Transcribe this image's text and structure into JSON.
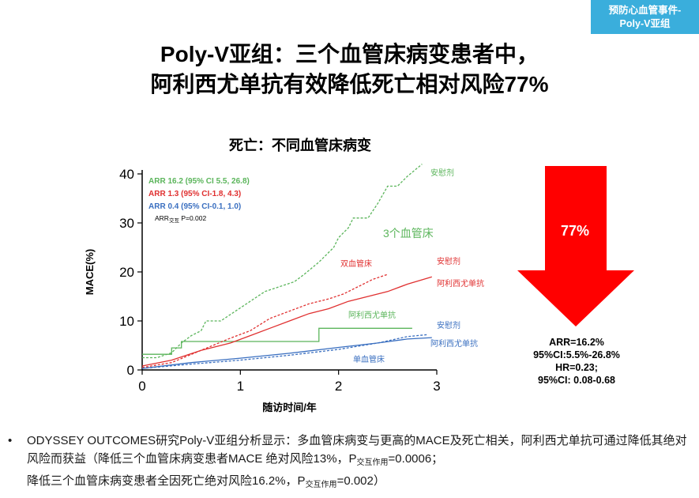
{
  "badge": {
    "line1": "预防心血管事件-",
    "line2": "Poly-V亚组"
  },
  "title": {
    "line1": "Poly-V亚组：三个血管床病变患者中，",
    "line2": "阿利西尤单抗有效降低死亡相对风险77%"
  },
  "chart_data": {
    "type": "line",
    "title": "死亡：不同血管床病变",
    "xlabel": "随访时间/年",
    "ylabel": "MACE(%)",
    "xlim": [
      0,
      3
    ],
    "ylim": [
      0,
      40
    ],
    "xticks": [
      0,
      1,
      2,
      3
    ],
    "yticks": [
      0,
      10,
      20,
      30,
      40
    ],
    "grid": false,
    "legend": [
      {
        "text": "ARR 16.2 (95% CI 5.5, 26.8)",
        "color": "#5bb55b"
      },
      {
        "text": "ARR 1.3 (95% CI-1.8, 4.3)",
        "color": "#e03030"
      },
      {
        "text": "ARR 0.4 (95% CI-0.1, 1.0)",
        "color": "#3a6fc0"
      }
    ],
    "legend_note": {
      "prefix": "ARR",
      "sub": "交互",
      "suffix": " P=0.002"
    },
    "series": [
      {
        "name": "安慰剂",
        "group": "3个血管床",
        "color": "#5bb55b",
        "dash": true,
        "points": [
          [
            0,
            2.5
          ],
          [
            0.15,
            2.5
          ],
          [
            0.3,
            3.5
          ],
          [
            0.4,
            5.5
          ],
          [
            0.5,
            7
          ],
          [
            0.6,
            8
          ],
          [
            0.65,
            10
          ],
          [
            0.8,
            10
          ],
          [
            0.95,
            12
          ],
          [
            1.1,
            14
          ],
          [
            1.25,
            16
          ],
          [
            1.4,
            17
          ],
          [
            1.55,
            18
          ],
          [
            1.65,
            19.5
          ],
          [
            1.8,
            22
          ],
          [
            1.95,
            25
          ],
          [
            2.0,
            27
          ],
          [
            2.1,
            29
          ],
          [
            2.15,
            31
          ],
          [
            2.3,
            31
          ],
          [
            2.4,
            34
          ],
          [
            2.5,
            37.5
          ],
          [
            2.6,
            37.5
          ],
          [
            2.7,
            39.5
          ],
          [
            2.85,
            42
          ]
        ]
      },
      {
        "name": "阿利西尤单抗",
        "group": "3个血管床",
        "color": "#5bb55b",
        "dash": false,
        "points": [
          [
            0,
            3.2
          ],
          [
            0.3,
            3.2
          ],
          [
            0.3,
            4.5
          ],
          [
            0.4,
            4.5
          ],
          [
            0.4,
            5.8
          ],
          [
            1.8,
            5.8
          ],
          [
            1.8,
            8.5
          ],
          [
            2.75,
            8.5
          ]
        ]
      },
      {
        "name": "安慰剂",
        "group": "双血管床",
        "color": "#e03030",
        "dash": true,
        "points": [
          [
            0,
            0.5
          ],
          [
            0.3,
            1.5
          ],
          [
            0.6,
            4
          ],
          [
            0.9,
            6.5
          ],
          [
            1.1,
            8
          ],
          [
            1.3,
            10.5
          ],
          [
            1.5,
            12
          ],
          [
            1.7,
            13.5
          ],
          [
            1.9,
            14.5
          ],
          [
            2.05,
            15.5
          ],
          [
            2.2,
            17
          ],
          [
            2.35,
            18.5
          ],
          [
            2.5,
            19.5
          ]
        ]
      },
      {
        "name": "阿利西尤单抗",
        "group": "双血管床",
        "color": "#e03030",
        "dash": false,
        "points": [
          [
            0,
            0.8
          ],
          [
            0.3,
            2
          ],
          [
            0.6,
            4
          ],
          [
            0.9,
            5.5
          ],
          [
            1.1,
            7
          ],
          [
            1.3,
            8.5
          ],
          [
            1.5,
            10
          ],
          [
            1.7,
            11.5
          ],
          [
            1.9,
            12.5
          ],
          [
            2.1,
            14
          ],
          [
            2.3,
            15
          ],
          [
            2.5,
            16
          ],
          [
            2.7,
            17.5
          ],
          [
            2.95,
            19
          ]
        ]
      },
      {
        "name": "安慰剂",
        "group": "单血管床",
        "color": "#3a6fc0",
        "dash": true,
        "points": [
          [
            0,
            0.3
          ],
          [
            0.5,
            1.2
          ],
          [
            1.0,
            2
          ],
          [
            1.5,
            3
          ],
          [
            2.0,
            4.2
          ],
          [
            2.4,
            5.5
          ],
          [
            2.7,
            6.8
          ],
          [
            2.9,
            7.2
          ]
        ]
      },
      {
        "name": "阿利西尤单抗",
        "group": "单血管床",
        "color": "#3a6fc0",
        "dash": false,
        "points": [
          [
            0,
            0.3
          ],
          [
            0.5,
            1.5
          ],
          [
            1.0,
            2.4
          ],
          [
            1.5,
            3.4
          ],
          [
            2.0,
            4.6
          ],
          [
            2.4,
            5.5
          ],
          [
            2.7,
            6.3
          ],
          [
            2.95,
            6.6
          ]
        ]
      }
    ],
    "annotations": [
      {
        "text": "安慰剂",
        "color": "#5bb55b"
      },
      {
        "text": "3个血管床",
        "color": "#5bb55b"
      },
      {
        "text": "双血管床",
        "color": "#e03030"
      },
      {
        "text": "安慰剂",
        "color": "#e03030"
      },
      {
        "text": "阿利西尤单抗",
        "color": "#e03030"
      },
      {
        "text": "阿利西尤单抗",
        "color": "#5bb55b"
      },
      {
        "text": "安慰剂",
        "color": "#3a6fc0"
      },
      {
        "text": "阿利西尤单抗",
        "color": "#3a6fc0"
      },
      {
        "text": "单血管床",
        "color": "#3a6fc0"
      }
    ]
  },
  "reduction": {
    "percent": "77%",
    "color": "#ff0000",
    "stats": [
      "ARR=16.2%",
      "95%CI:5.5%-26.8%",
      "HR=0.23;",
      "95%CI: 0.08-0.68"
    ]
  },
  "bullet": {
    "marker": "•",
    "text1": "ODYSSEY OUTCOMES研究Poly-V亚组分析显示：多血管床病变与更高的MACE及死亡相关，阿利西尤单抗可通过降低其绝对风险而获益（降低三个血管床病变患者MACE 绝对风险13%，",
    "p_label": "P",
    "p_sub": "交互作用",
    "p1_value": "=0.0006；",
    "text2": "降低三个血管床病变患者全因死亡绝对风险16.2%，",
    "p2_value": "=0.002）"
  }
}
